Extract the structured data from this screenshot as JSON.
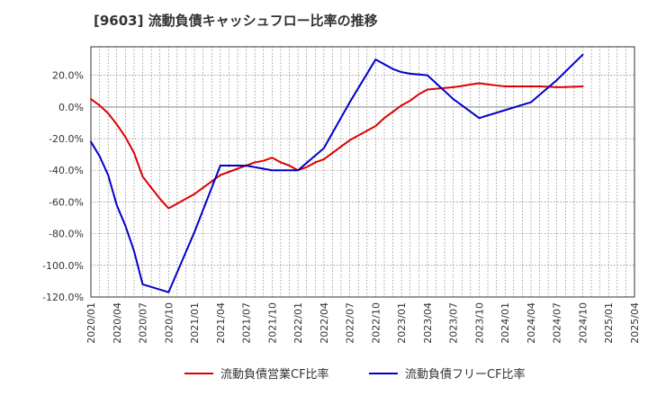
{
  "chart_data": {
    "type": "line",
    "title": "[9603]  流動負債キャッシュフロー比率の推移",
    "x_ticks": [
      "2020/01",
      "2020/04",
      "2020/07",
      "2020/10",
      "2021/01",
      "2021/04",
      "2021/07",
      "2021/10",
      "2022/01",
      "2022/04",
      "2022/07",
      "2022/10",
      "2023/01",
      "2023/04",
      "2023/07",
      "2023/10",
      "2024/01",
      "2024/04",
      "2024/07",
      "2024/10",
      "2025/01",
      "2025/04"
    ],
    "y_ticks": [
      "20.0%",
      "0.0%",
      "-20.0%",
      "-40.0%",
      "-60.0%",
      "-80.0%",
      "-100.0%",
      "-120.0%"
    ],
    "y_tick_values": [
      20,
      0,
      -20,
      -40,
      -60,
      -80,
      -100,
      -120
    ],
    "ylim": [
      -120,
      38
    ],
    "grid": true,
    "legend_position": "bottom",
    "series": [
      {
        "name": "流動負債営業CF比率",
        "color": "#dd0000",
        "x": [
          "2020/01",
          "2020/02",
          "2020/03",
          "2020/04",
          "2020/05",
          "2020/06",
          "2020/07",
          "2020/08",
          "2020/09",
          "2020/10",
          "2020/11",
          "2020/12",
          "2021/01",
          "2021/02",
          "2021/03",
          "2021/04",
          "2021/05",
          "2021/06",
          "2021/07",
          "2021/08",
          "2021/09",
          "2021/10",
          "2021/11",
          "2021/12",
          "2022/01",
          "2022/02",
          "2022/03",
          "2022/04",
          "2022/05",
          "2022/06",
          "2022/07",
          "2022/08",
          "2022/09",
          "2022/10",
          "2022/11",
          "2022/12",
          "2023/01",
          "2023/02",
          "2023/03",
          "2023/04",
          "2023/05",
          "2023/06",
          "2023/07",
          "2023/08",
          "2023/09",
          "2023/10",
          "2023/11",
          "2023/12",
          "2024/01",
          "2024/02",
          "2024/03",
          "2024/04",
          "2024/05",
          "2024/06",
          "2024/07",
          "2024/08",
          "2024/09",
          "2024/10"
        ],
        "values": [
          5,
          1,
          -4,
          -11,
          -19,
          -29,
          -44,
          -51,
          -58,
          -64,
          -61,
          -58,
          -55,
          -51,
          -47,
          -43,
          -41,
          -39,
          -37,
          -35,
          -34,
          -32,
          -35,
          -37,
          -40,
          -38,
          -35,
          -33,
          -29,
          -25,
          -21,
          -18,
          -15,
          -12,
          -7,
          -3,
          1,
          4,
          8,
          11,
          11.5,
          12,
          12.5,
          13.3,
          14.2,
          15,
          14.3,
          13.6,
          13,
          13,
          13,
          13,
          13,
          12.8,
          12.5,
          12.6,
          12.8,
          13
        ]
      },
      {
        "name": "流動負債フリーCF比率",
        "color": "#0000cc",
        "x": [
          "2020/01",
          "2020/02",
          "2020/03",
          "2020/04",
          "2020/05",
          "2020/06",
          "2020/07",
          "2020/10",
          "2021/01",
          "2021/04",
          "2021/07",
          "2021/10",
          "2022/01",
          "2022/04",
          "2022/07",
          "2022/10",
          "2022/11",
          "2022/12",
          "2023/01",
          "2023/02",
          "2023/03",
          "2023/04",
          "2023/07",
          "2023/10",
          "2024/01",
          "2024/04",
          "2024/07",
          "2024/10"
        ],
        "values": [
          -22,
          -31,
          -43,
          -62,
          -75,
          -91,
          -112,
          -117,
          -79,
          -37,
          -37,
          -40,
          -40,
          -26,
          3,
          30,
          27,
          24,
          22,
          21,
          20.5,
          20,
          5,
          -7,
          -2,
          3,
          17,
          33
        ]
      }
    ]
  }
}
